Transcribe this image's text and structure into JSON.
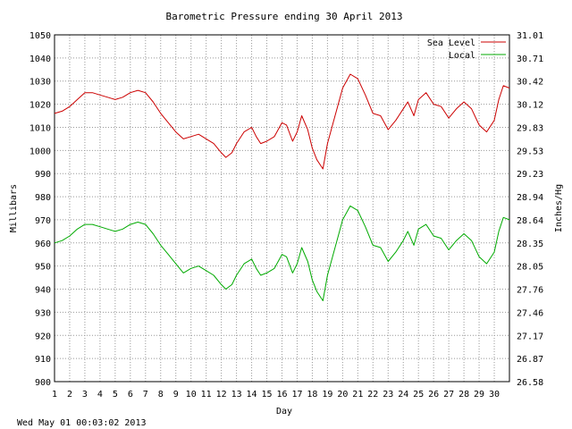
{
  "chart_data": {
    "type": "line",
    "title": "Barometric Pressure ending 30 April 2013",
    "xlabel": "Day",
    "ylabel": "Millibars",
    "y2label": "Inches/Hg",
    "xlim": [
      1,
      31
    ],
    "ylim": [
      900,
      1050
    ],
    "x_ticks": [
      "1",
      "2",
      "3",
      "4",
      "5",
      "6",
      "7",
      "8",
      "9",
      "10",
      "11",
      "12",
      "13",
      "14",
      "15",
      "16",
      "17",
      "18",
      "19",
      "20",
      "21",
      "22",
      "23",
      "24",
      "25",
      "26",
      "27",
      "28",
      "29",
      "30"
    ],
    "y_ticks": [
      "900",
      "910",
      "920",
      "930",
      "940",
      "950",
      "960",
      "970",
      "980",
      "990",
      "1000",
      "1010",
      "1020",
      "1030",
      "1040",
      "1050"
    ],
    "y2_ticks": [
      "26.58",
      "26.87",
      "27.17",
      "27.46",
      "27.76",
      "28.05",
      "28.35",
      "28.64",
      "28.94",
      "29.23",
      "29.53",
      "29.83",
      "30.12",
      "30.42",
      "30.71",
      "31.01"
    ],
    "grid": true,
    "legend_position": "top-right",
    "footer": "Wed May 01 00:03:02 2013",
    "colors": {
      "sea_level": "#cc0000",
      "local": "#00aa00",
      "grid": "#999999"
    },
    "series": [
      {
        "name": "Sea Level",
        "x": [
          1,
          1.5,
          2,
          2.5,
          3,
          3.5,
          4,
          4.5,
          5,
          5.5,
          6,
          6.5,
          7,
          7.5,
          8,
          8.5,
          9,
          9.5,
          10,
          10.5,
          11,
          11.5,
          12,
          12.3,
          12.7,
          13,
          13.5,
          14,
          14.3,
          14.6,
          15,
          15.5,
          16,
          16.3,
          16.7,
          17,
          17.3,
          17.7,
          18,
          18.3,
          18.7,
          19,
          19.5,
          20,
          20.5,
          21,
          21.5,
          22,
          22.5,
          23,
          23.5,
          24,
          24.3,
          24.7,
          25,
          25.5,
          26,
          26.5,
          27,
          27.5,
          28,
          28.5,
          29,
          29.5,
          30,
          30.3,
          30.6,
          31
        ],
        "y": [
          1016,
          1017,
          1019,
          1022,
          1025,
          1025,
          1024,
          1023,
          1022,
          1023,
          1025,
          1026,
          1025,
          1021,
          1016,
          1012,
          1008,
          1005,
          1006,
          1007,
          1005,
          1003,
          999,
          997,
          999,
          1003,
          1008,
          1010,
          1006,
          1003,
          1004,
          1006,
          1012,
          1011,
          1004,
          1008,
          1015,
          1009,
          1001,
          996,
          992,
          1003,
          1015,
          1027,
          1033,
          1031,
          1024,
          1016,
          1015,
          1009,
          1013,
          1018,
          1021,
          1015,
          1022,
          1025,
          1020,
          1019,
          1014,
          1018,
          1021,
          1018,
          1011,
          1008,
          1013,
          1022,
          1028,
          1027
        ]
      },
      {
        "name": "Local",
        "x": [
          1,
          1.5,
          2,
          2.5,
          3,
          3.5,
          4,
          4.5,
          5,
          5.5,
          6,
          6.5,
          7,
          7.5,
          8,
          8.5,
          9,
          9.5,
          10,
          10.5,
          11,
          11.5,
          12,
          12.3,
          12.7,
          13,
          13.5,
          14,
          14.3,
          14.6,
          15,
          15.5,
          16,
          16.3,
          16.7,
          17,
          17.3,
          17.7,
          18,
          18.3,
          18.7,
          19,
          19.5,
          20,
          20.5,
          21,
          21.5,
          22,
          22.5,
          23,
          23.5,
          24,
          24.3,
          24.7,
          25,
          25.5,
          26,
          26.5,
          27,
          27.5,
          28,
          28.5,
          29,
          29.5,
          30,
          30.3,
          30.6,
          31
        ],
        "y": [
          960,
          961,
          963,
          966,
          968,
          968,
          967,
          966,
          965,
          966,
          968,
          969,
          968,
          964,
          959,
          955,
          951,
          947,
          949,
          950,
          948,
          946,
          942,
          940,
          942,
          946,
          951,
          953,
          949,
          946,
          947,
          949,
          955,
          954,
          947,
          951,
          958,
          952,
          944,
          939,
          935,
          946,
          958,
          970,
          976,
          974,
          967,
          959,
          958,
          952,
          956,
          961,
          965,
          959,
          966,
          968,
          963,
          962,
          957,
          961,
          964,
          961,
          954,
          951,
          956,
          965,
          971,
          970
        ]
      }
    ]
  }
}
